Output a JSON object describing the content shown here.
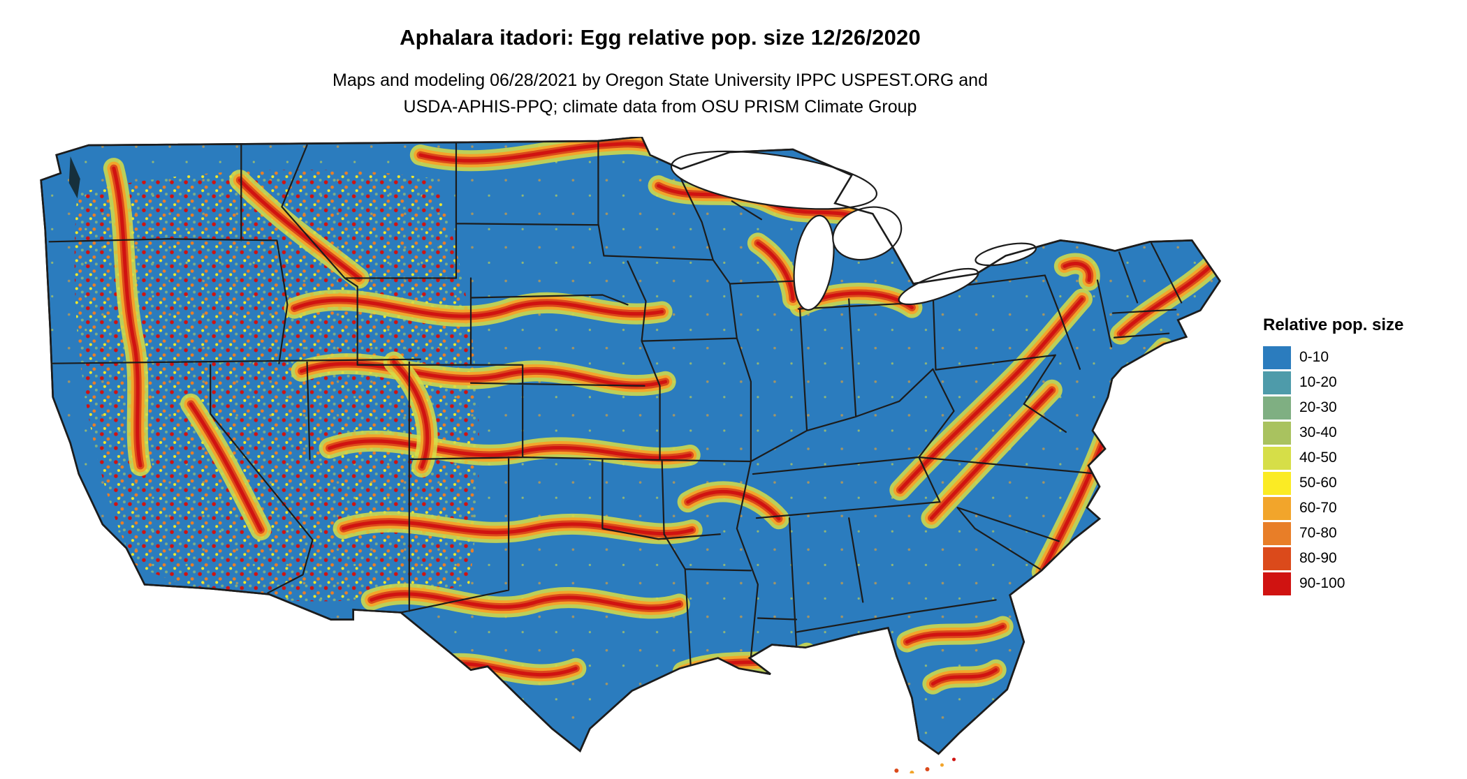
{
  "header": {
    "title": "Aphalara itadori: Egg relative pop. size 12/26/2020",
    "subtitle_line1": "Maps and modeling 06/28/2021 by Oregon State University IPPC USPEST.ORG and",
    "subtitle_line2": "USDA-APHIS-PPQ; climate data from OSU PRISM Climate Group"
  },
  "legend": {
    "title": "Relative pop. size",
    "items": [
      {
        "label": "0-10",
        "color": "#2B7CBE"
      },
      {
        "label": "10-20",
        "color": "#4E9BAA"
      },
      {
        "label": "20-30",
        "color": "#7FAF82"
      },
      {
        "label": "30-40",
        "color": "#A9C25F"
      },
      {
        "label": "40-50",
        "color": "#D6DE48"
      },
      {
        "label": "50-60",
        "color": "#FBEB24"
      },
      {
        "label": "60-70",
        "color": "#F2A52B"
      },
      {
        "label": "70-80",
        "color": "#E87E28"
      },
      {
        "label": "80-90",
        "color": "#DB4A1B"
      },
      {
        "label": "90-100",
        "color": "#D01311"
      }
    ]
  },
  "map": {
    "region": "Contiguous United States",
    "border_color": "#1c1c1c",
    "background_color": "#ffffff"
  }
}
